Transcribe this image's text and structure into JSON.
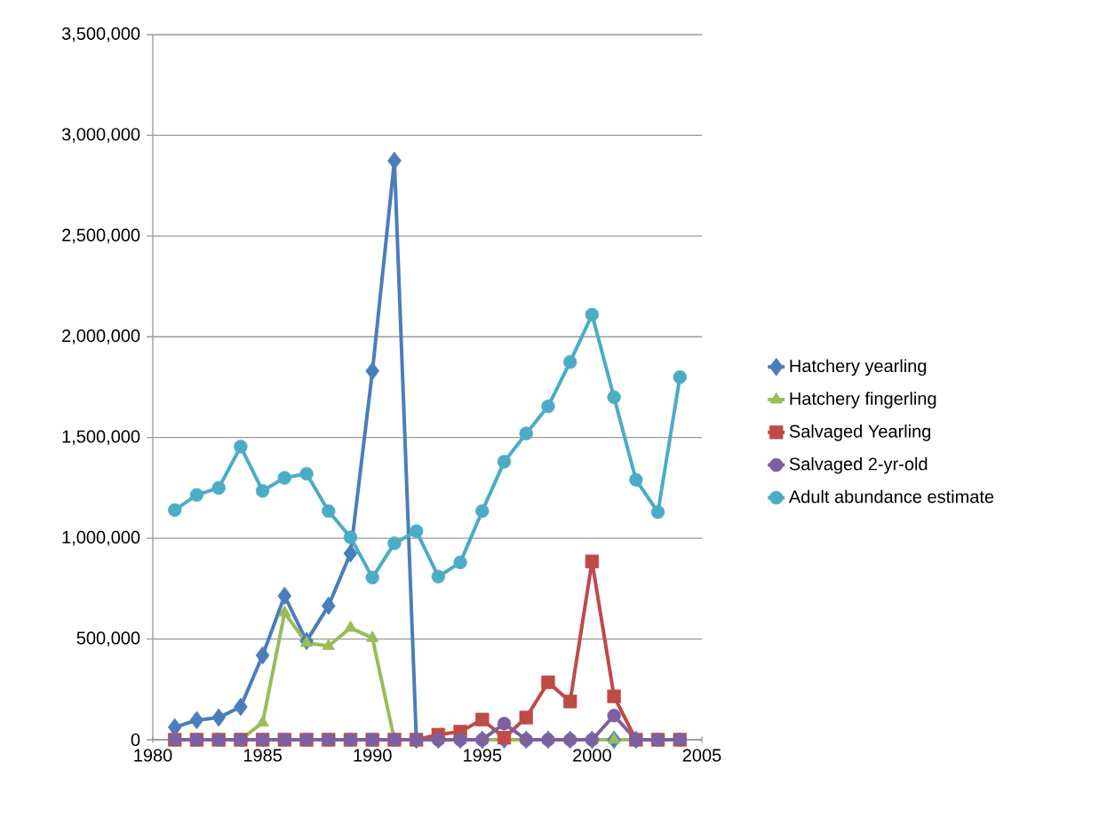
{
  "chart_data": {
    "type": "line",
    "x": [
      1981,
      1982,
      1983,
      1984,
      1985,
      1986,
      1987,
      1988,
      1989,
      1990,
      1991,
      1992,
      1993,
      1994,
      1995,
      1996,
      1997,
      1998,
      1999,
      2000,
      2001,
      2002,
      2003,
      2004
    ],
    "series": [
      {
        "name": "Hatchery yearling",
        "color": "#4a7ebb",
        "marker": "diamond",
        "values": [
          62000,
          97000,
          110000,
          163000,
          419000,
          714000,
          490000,
          665000,
          925000,
          1830000,
          2874000,
          0,
          0,
          0,
          0,
          0,
          0,
          0,
          0,
          0,
          0,
          0,
          null,
          null
        ]
      },
      {
        "name": "Hatchery fingerling",
        "color": "#9bbb59",
        "marker": "triangle",
        "values": [
          null,
          null,
          0,
          0,
          85000,
          630000,
          480000,
          465000,
          555000,
          505000,
          0,
          0,
          0,
          0,
          0,
          0,
          0,
          0,
          0,
          0,
          0,
          0,
          0,
          0
        ]
      },
      {
        "name": "Salvaged Yearling",
        "color": "#be4b48",
        "marker": "square",
        "values": [
          0,
          0,
          0,
          0,
          0,
          0,
          0,
          0,
          0,
          0,
          0,
          0,
          25000,
          40000,
          100000,
          10000,
          110000,
          285000,
          190000,
          885000,
          215000,
          0,
          0,
          0
        ]
      },
      {
        "name": "Salvaged 2-yr-old",
        "color": "#7d60a0",
        "marker": "circle",
        "values": [
          0,
          0,
          0,
          0,
          0,
          0,
          0,
          0,
          0,
          0,
          0,
          0,
          0,
          0,
          0,
          80000,
          0,
          0,
          0,
          0,
          120000,
          0,
          0,
          0
        ]
      },
      {
        "name": "Adult abundance estimate",
        "color": "#4bacc6",
        "marker": "circle",
        "values": [
          1140000,
          1215000,
          1250000,
          1455000,
          1235000,
          1300000,
          1320000,
          1135000,
          1005000,
          805000,
          975000,
          1035000,
          810000,
          880000,
          1135000,
          1380000,
          1520000,
          1655000,
          1875000,
          2110000,
          1700000,
          1290000,
          1130000,
          1800000
        ]
      }
    ],
    "xlim": [
      1980,
      2005
    ],
    "xticks": [
      1980,
      1985,
      1990,
      1995,
      2000,
      2005
    ],
    "ylim": [
      0,
      3500000
    ],
    "yticks": [
      {
        "value": 0,
        "label": "0"
      },
      {
        "value": 500000,
        "label": "500,000"
      },
      {
        "value": 1000000,
        "label": "1,000,000"
      },
      {
        "value": 1500000,
        "label": "1,500,000"
      },
      {
        "value": 2000000,
        "label": "2,000,000"
      },
      {
        "value": 2500000,
        "label": "2,500,000"
      },
      {
        "value": 3000000,
        "label": "3,000,000"
      },
      {
        "value": 3500000,
        "label": "3,500,000"
      }
    ],
    "grid": "y",
    "legend": "right"
  }
}
